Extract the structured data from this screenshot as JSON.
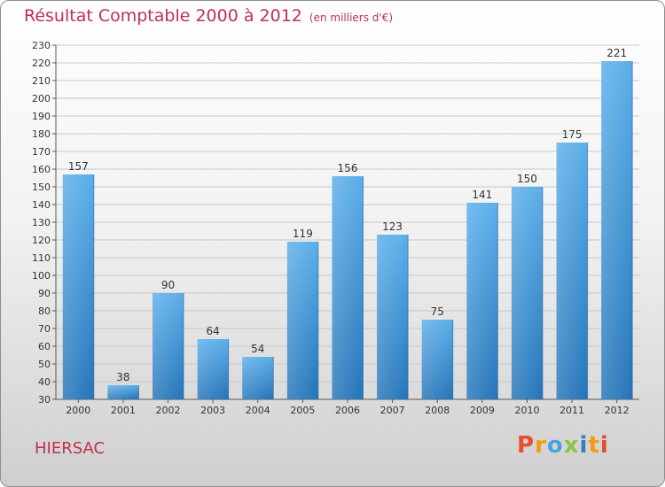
{
  "title": "Résultat Comptable 2000 à 2012",
  "unit": "(en milliers d'€)",
  "commune": "HIERSAC",
  "brand": {
    "p": "P",
    "r": "r",
    "o": "o",
    "x": "x",
    "i1": "i",
    "t": "t",
    "i2": "i"
  },
  "colors": {
    "bar": "#3e94d8",
    "bar_light": "#5aaeea",
    "bar_dark": "#2474b8",
    "title": "#c0304f",
    "grid": "#c8c8c8"
  },
  "chart_data": {
    "type": "bar",
    "title": "Résultat Comptable 2000 à 2012",
    "ylabel": "en milliers d'€",
    "xlabel": "",
    "categories": [
      "2000",
      "2001",
      "2002",
      "2003",
      "2004",
      "2005",
      "2006",
      "2007",
      "2008",
      "2009",
      "2010",
      "2011",
      "2012"
    ],
    "values": [
      157,
      38,
      90,
      64,
      54,
      119,
      156,
      123,
      75,
      141,
      150,
      175,
      221
    ],
    "ylim": [
      30,
      230
    ],
    "yticks": [
      30,
      40,
      50,
      60,
      70,
      80,
      90,
      100,
      110,
      120,
      130,
      140,
      150,
      160,
      170,
      180,
      190,
      200,
      210,
      220,
      230
    ],
    "grid": true
  }
}
